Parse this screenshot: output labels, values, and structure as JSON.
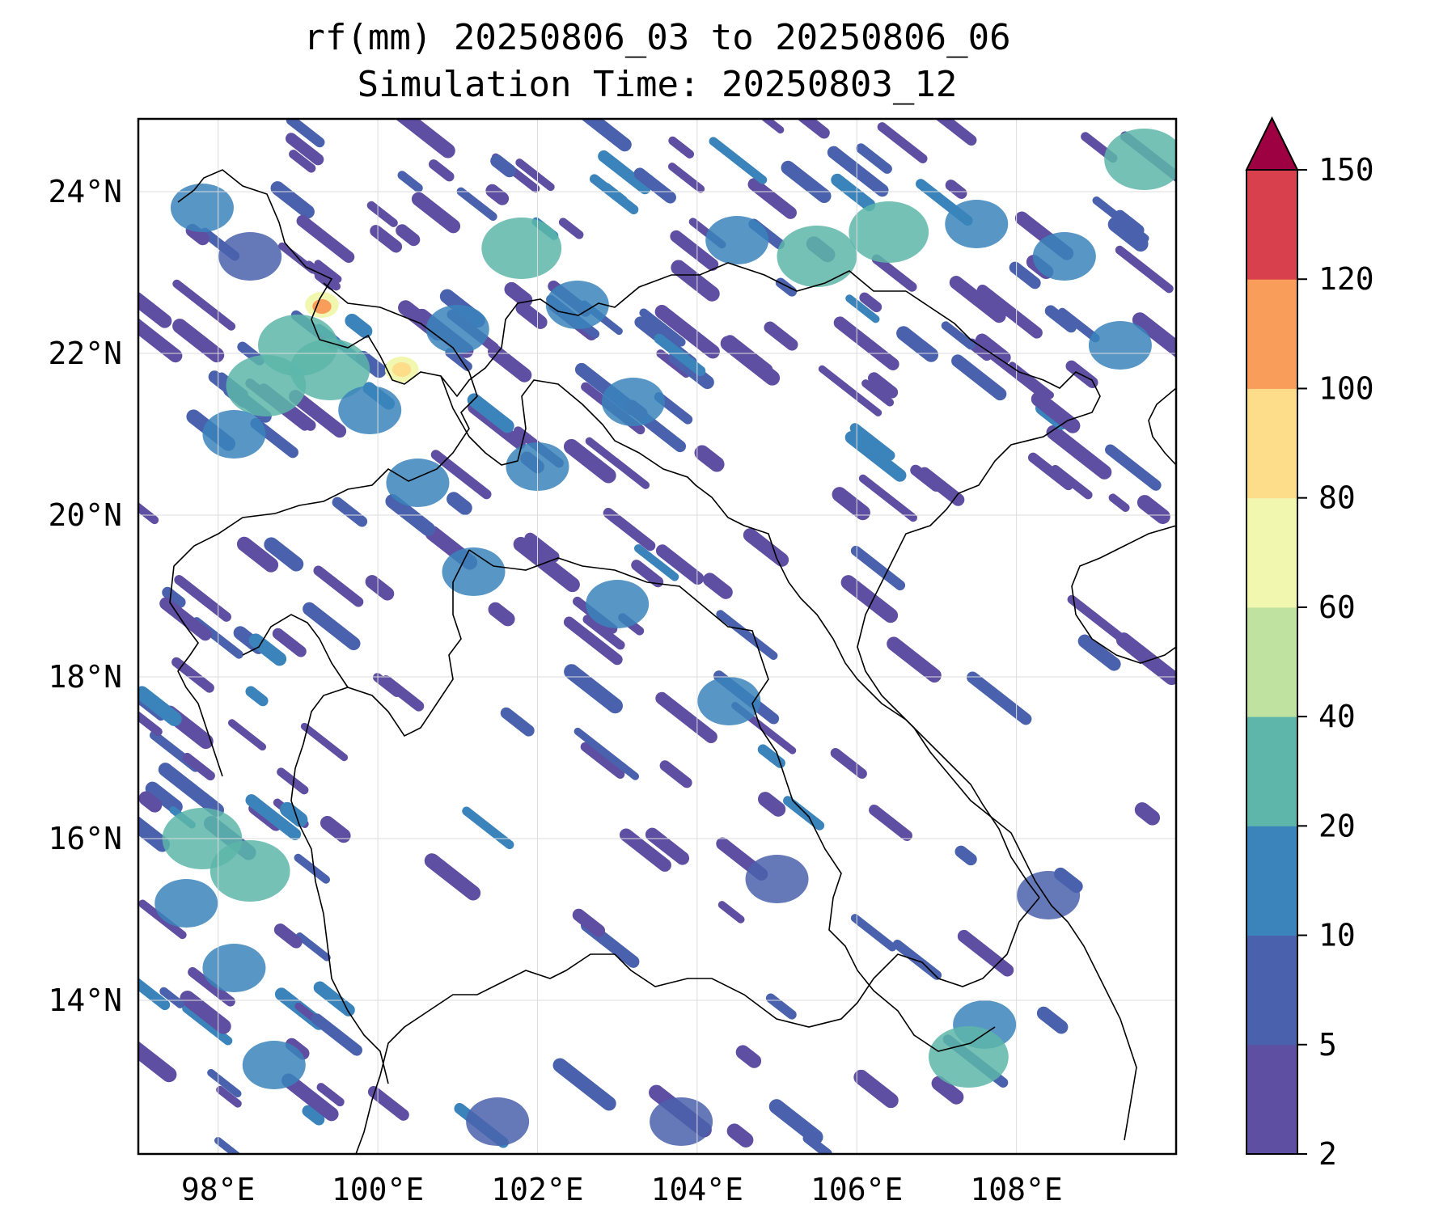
{
  "title": {
    "line1": "rf(mm) 20250806_03 to 20250806_06",
    "line2": "Simulation Time: 20250803_12"
  },
  "map": {
    "lon_range": [
      97.0,
      110.0
    ],
    "lat_range": [
      12.1,
      24.9
    ],
    "x_ticks": [
      {
        "value": 98,
        "label": "98°E"
      },
      {
        "value": 100,
        "label": "100°E"
      },
      {
        "value": 102,
        "label": "102°E"
      },
      {
        "value": 104,
        "label": "104°E"
      },
      {
        "value": 106,
        "label": "106°E"
      },
      {
        "value": 108,
        "label": "108°E"
      }
    ],
    "y_ticks": [
      {
        "value": 24,
        "label": "24°N"
      },
      {
        "value": 22,
        "label": "22°N"
      },
      {
        "value": 20,
        "label": "20°N"
      },
      {
        "value": 18,
        "label": "18°N"
      },
      {
        "value": 16,
        "label": "16°N"
      },
      {
        "value": 14,
        "label": "14°N"
      }
    ],
    "grid": true,
    "rain_cells": [
      {
        "lon": 97.8,
        "lat": 23.8,
        "level": 2
      },
      {
        "lon": 98.4,
        "lat": 23.2,
        "level": 1
      },
      {
        "lon": 99.0,
        "lat": 22.1,
        "level": 3
      },
      {
        "lon": 99.4,
        "lat": 21.8,
        "level": 3
      },
      {
        "lon": 98.6,
        "lat": 21.6,
        "level": 3
      },
      {
        "lon": 99.9,
        "lat": 21.3,
        "level": 2
      },
      {
        "lon": 98.2,
        "lat": 21.0,
        "level": 2
      },
      {
        "lon": 99.3,
        "lat": 22.6,
        "level": 5
      },
      {
        "lon": 99.3,
        "lat": 22.58,
        "level": 7
      },
      {
        "lon": 100.3,
        "lat": 21.8,
        "level": 5
      },
      {
        "lon": 100.3,
        "lat": 21.8,
        "level": 6
      },
      {
        "lon": 101.0,
        "lat": 22.3,
        "level": 2
      },
      {
        "lon": 101.8,
        "lat": 23.3,
        "level": 3
      },
      {
        "lon": 102.5,
        "lat": 22.6,
        "level": 2
      },
      {
        "lon": 103.2,
        "lat": 21.4,
        "level": 2
      },
      {
        "lon": 102.0,
        "lat": 20.6,
        "level": 2
      },
      {
        "lon": 100.5,
        "lat": 20.4,
        "level": 2
      },
      {
        "lon": 101.2,
        "lat": 19.3,
        "level": 2
      },
      {
        "lon": 103.0,
        "lat": 18.9,
        "level": 2
      },
      {
        "lon": 104.4,
        "lat": 17.7,
        "level": 2
      },
      {
        "lon": 104.5,
        "lat": 23.4,
        "level": 2
      },
      {
        "lon": 105.5,
        "lat": 23.2,
        "level": 3
      },
      {
        "lon": 106.4,
        "lat": 23.5,
        "level": 3
      },
      {
        "lon": 107.5,
        "lat": 23.6,
        "level": 2
      },
      {
        "lon": 108.6,
        "lat": 23.2,
        "level": 2
      },
      {
        "lon": 109.6,
        "lat": 24.4,
        "level": 3
      },
      {
        "lon": 109.3,
        "lat": 22.1,
        "level": 2
      },
      {
        "lon": 97.8,
        "lat": 16.0,
        "level": 3
      },
      {
        "lon": 98.4,
        "lat": 15.6,
        "level": 3
      },
      {
        "lon": 97.6,
        "lat": 15.2,
        "level": 2
      },
      {
        "lon": 98.2,
        "lat": 14.4,
        "level": 2
      },
      {
        "lon": 98.7,
        "lat": 13.2,
        "level": 2
      },
      {
        "lon": 107.6,
        "lat": 13.7,
        "level": 2
      },
      {
        "lon": 107.4,
        "lat": 13.3,
        "level": 3
      },
      {
        "lon": 105.0,
        "lat": 15.5,
        "level": 1
      },
      {
        "lon": 108.4,
        "lat": 15.3,
        "level": 1
      },
      {
        "lon": 101.5,
        "lat": 12.5,
        "level": 1
      },
      {
        "lon": 103.8,
        "lat": 12.5,
        "level": 1
      }
    ]
  },
  "colorbar": {
    "levels": [
      2,
      5,
      10,
      20,
      40,
      60,
      80,
      100,
      120,
      150
    ],
    "labels": [
      "2",
      "5",
      "10",
      "20",
      "40",
      "60",
      "80",
      "100",
      "120",
      "150"
    ],
    "colors": [
      "#5e4fa2",
      "#4a62ad",
      "#3a84bb",
      "#5db6a9",
      "#c0e2a0",
      "#f2f7b0",
      "#fddc8a",
      "#f99d5a",
      "#d8404e"
    ],
    "extend_color": "#9e0142"
  }
}
